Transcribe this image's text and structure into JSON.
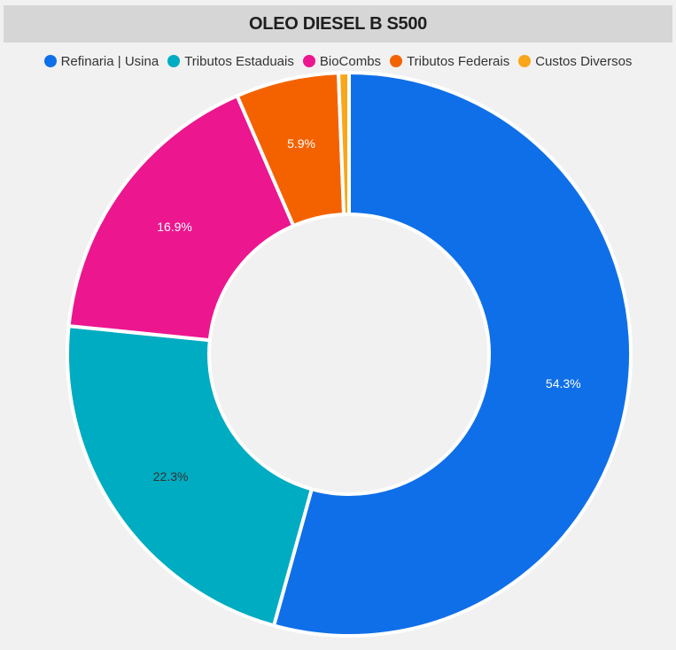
{
  "chart_data": {
    "type": "pie",
    "title": "OLEO DIESEL B S500",
    "categories": [
      "Refinaria | Usina",
      "Tributos Estaduais",
      "BioCombs",
      "Tributos Federais",
      "Custos Diversos"
    ],
    "values": [
      54.3,
      22.3,
      16.9,
      5.9,
      0.6
    ],
    "labels": [
      "54.3%",
      "22.3%",
      "16.9%",
      "5.9%",
      ""
    ],
    "colors": [
      "#0f6fe8",
      "#00acc1",
      "#ec168f",
      "#f46200",
      "#f9a61a"
    ],
    "label_colors": [
      "#ffffff",
      "#333333",
      "#ffffff",
      "#ffffff",
      "#ffffff"
    ],
    "donut": true,
    "legend_position": "top"
  }
}
